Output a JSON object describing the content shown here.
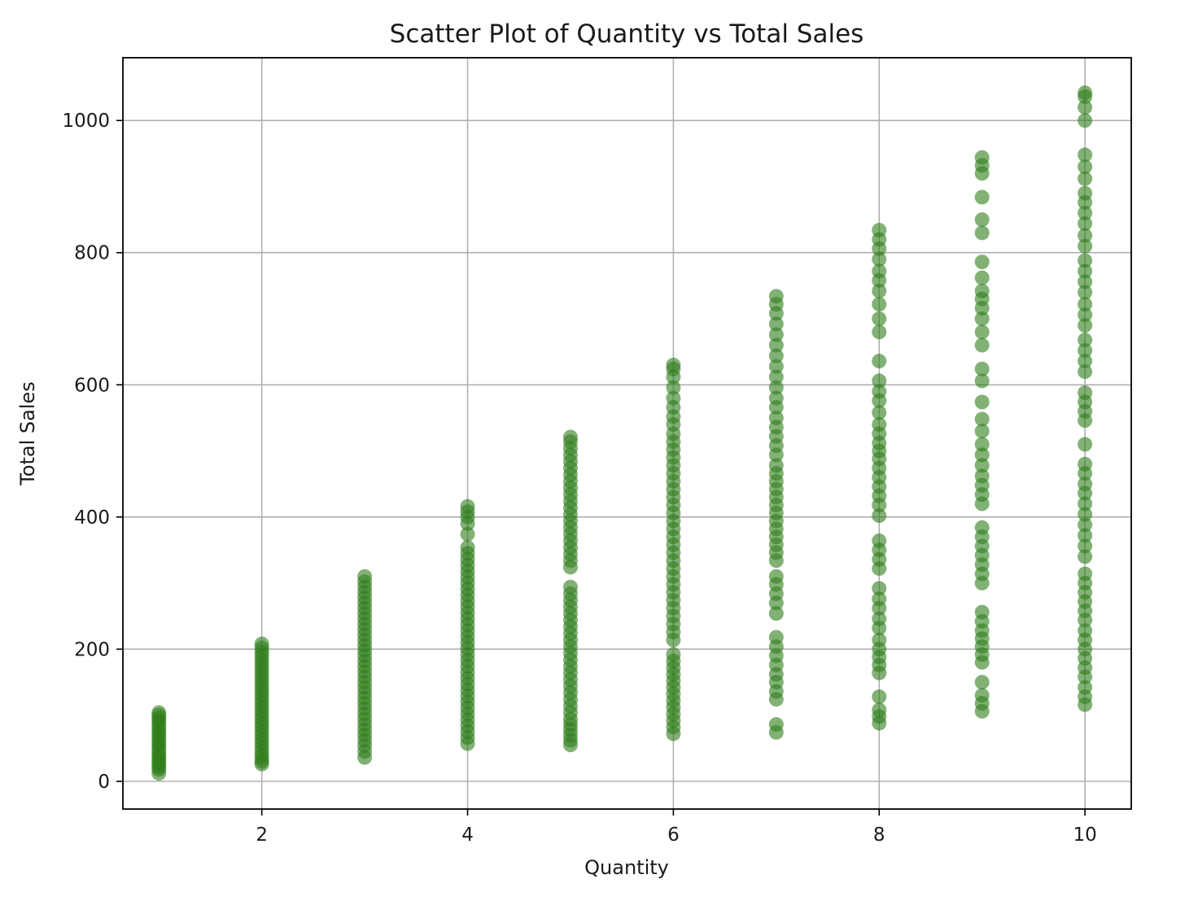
{
  "chart_data": {
    "type": "scatter",
    "title": "Scatter Plot of Quantity vs Total Sales",
    "xlabel": "Quantity",
    "ylabel": "Total Sales",
    "xlim": [
      0.65,
      10.45
    ],
    "ylim": [
      -42,
      1095
    ],
    "xticks": [
      2,
      4,
      6,
      8,
      10
    ],
    "yticks": [
      0,
      200,
      400,
      600,
      800,
      1000
    ],
    "grid": true,
    "marker_color": "#2e7d1a",
    "marker_opacity": 0.6,
    "points": {
      "1": [
        12,
        18,
        22,
        26,
        30,
        34,
        38,
        42,
        47,
        52,
        56,
        60,
        65,
        70,
        74,
        78,
        83,
        88,
        92,
        96,
        100,
        104
      ],
      "2": [
        26,
        30,
        35,
        40,
        46,
        52,
        58,
        64,
        70,
        76,
        82,
        88,
        94,
        100,
        106,
        112,
        118,
        124,
        130,
        136,
        142,
        148,
        154,
        160,
        166,
        172,
        178,
        184,
        190,
        196,
        202,
        208
      ],
      "3": [
        36,
        45,
        54,
        62,
        70,
        78,
        86,
        94,
        102,
        110,
        118,
        126,
        134,
        142,
        150,
        158,
        166,
        174,
        182,
        190,
        198,
        206,
        214,
        222,
        230,
        238,
        246,
        254,
        262,
        270,
        278,
        286,
        294,
        302,
        310
      ],
      "4": [
        57,
        66,
        75,
        84,
        93,
        102,
        111,
        120,
        129,
        138,
        147,
        156,
        165,
        174,
        183,
        192,
        201,
        210,
        219,
        228,
        237,
        246,
        255,
        264,
        273,
        282,
        291,
        300,
        309,
        318,
        327,
        336,
        345,
        354,
        374,
        390,
        400,
        408,
        416
      ],
      "5": [
        55,
        62,
        70,
        78,
        86,
        94,
        104,
        114,
        124,
        134,
        144,
        154,
        164,
        174,
        184,
        194,
        204,
        214,
        224,
        234,
        244,
        254,
        264,
        274,
        284,
        294,
        324,
        334,
        344,
        354,
        364,
        374,
        384,
        394,
        404,
        414,
        424,
        434,
        444,
        454,
        464,
        474,
        484,
        494,
        504,
        514,
        521
      ],
      "6": [
        72,
        82,
        92,
        102,
        112,
        122,
        132,
        142,
        152,
        162,
        172,
        182,
        192,
        214,
        226,
        238,
        250,
        262,
        274,
        286,
        298,
        310,
        322,
        334,
        346,
        358,
        370,
        382,
        394,
        406,
        418,
        430,
        442,
        454,
        466,
        478,
        490,
        502,
        514,
        526,
        540,
        552,
        566,
        580,
        596,
        612,
        624,
        630
      ],
      "7": [
        74,
        86,
        124,
        136,
        150,
        162,
        176,
        190,
        204,
        218,
        254,
        270,
        284,
        298,
        310,
        334,
        346,
        358,
        370,
        382,
        394,
        406,
        418,
        430,
        442,
        454,
        466,
        478,
        494,
        508,
        522,
        536,
        550,
        566,
        580,
        596,
        612,
        628,
        644,
        660,
        676,
        692,
        708,
        722,
        734
      ],
      "8": [
        88,
        98,
        108,
        128,
        164,
        176,
        188,
        200,
        214,
        232,
        246,
        262,
        276,
        292,
        322,
        336,
        350,
        364,
        402,
        418,
        432,
        446,
        460,
        474,
        488,
        500,
        512,
        526,
        540,
        558,
        576,
        590,
        606,
        636,
        680,
        700,
        722,
        742,
        758,
        772,
        790,
        806,
        820,
        834
      ],
      "9": [
        106,
        118,
        130,
        150,
        180,
        192,
        204,
        216,
        228,
        242,
        256,
        300,
        314,
        328,
        342,
        356,
        370,
        384,
        420,
        434,
        448,
        462,
        478,
        494,
        510,
        530,
        548,
        574,
        606,
        624,
        660,
        680,
        700,
        716,
        730,
        742,
        762,
        786,
        830,
        850,
        884,
        920,
        932,
        944
      ],
      "10": [
        116,
        128,
        142,
        158,
        172,
        186,
        200,
        214,
        228,
        244,
        258,
        272,
        286,
        300,
        314,
        340,
        356,
        372,
        388,
        404,
        420,
        436,
        450,
        466,
        480,
        510,
        546,
        560,
        574,
        588,
        620,
        636,
        652,
        668,
        690,
        706,
        722,
        740,
        756,
        772,
        788,
        810,
        826,
        844,
        860,
        876,
        890,
        912,
        930,
        948,
        1000,
        1020,
        1036,
        1042
      ]
    }
  }
}
